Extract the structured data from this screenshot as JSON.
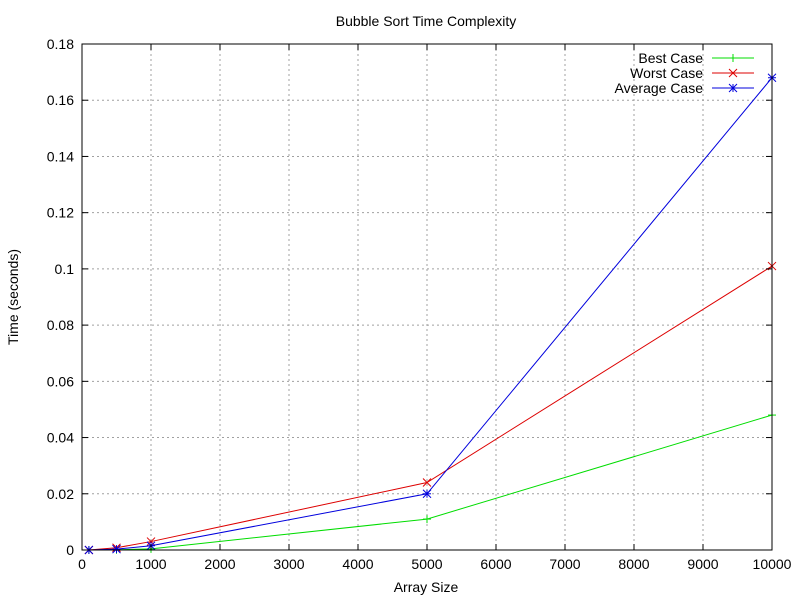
{
  "chart_data": {
    "type": "line",
    "title": "Bubble Sort Time Complexity",
    "xlabel": "Array Size",
    "ylabel": "Time (seconds)",
    "xlim": [
      0,
      10000
    ],
    "ylim": [
      0,
      0.18
    ],
    "xticks": [
      0,
      1000,
      2000,
      3000,
      4000,
      5000,
      6000,
      7000,
      8000,
      9000,
      10000
    ],
    "xtick_labels": [
      "0",
      "1000",
      "2000",
      "3000",
      "4000",
      "5000",
      "6000",
      "7000",
      "8000",
      "9000",
      "10000"
    ],
    "yticks": [
      0,
      0.02,
      0.04,
      0.06,
      0.08,
      0.1,
      0.12,
      0.14,
      0.16,
      0.18
    ],
    "ytick_labels": [
      "0",
      "0.02",
      "0.04",
      "0.06",
      "0.08",
      "0.1",
      "0.12",
      "0.14",
      "0.16",
      "0.18"
    ],
    "grid": true,
    "legend_position": "top-right",
    "x": [
      100,
      500,
      1000,
      5000,
      10000
    ],
    "series": [
      {
        "name": "Best Case",
        "color": "#00dd00",
        "marker": "plus",
        "values": [
          0.0,
          0.0001,
          0.0004,
          0.011,
          0.048
        ]
      },
      {
        "name": "Worst Case",
        "color": "#dd0000",
        "marker": "cross",
        "values": [
          0.0,
          0.0008,
          0.003,
          0.024,
          0.101
        ]
      },
      {
        "name": "Average Case",
        "color": "#0000dd",
        "marker": "star",
        "values": [
          0.0,
          0.0003,
          0.0015,
          0.02,
          0.168
        ]
      }
    ]
  }
}
